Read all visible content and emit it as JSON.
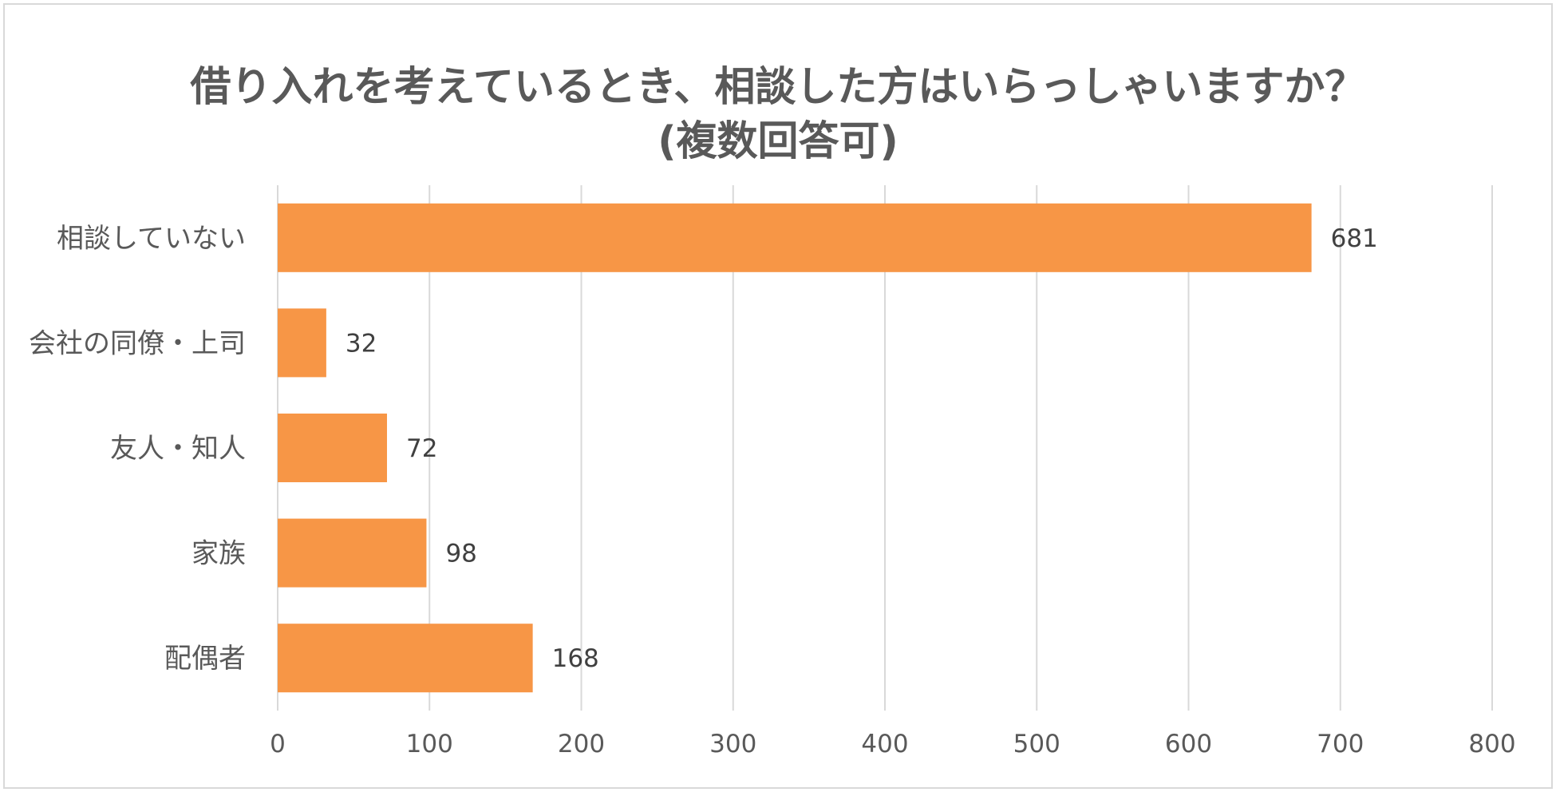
{
  "chart_data": {
    "type": "bar",
    "orientation": "horizontal",
    "title_lines": [
      "借り入れを考えているとき、相談した方はいらっしゃいますか？",
      "(複数回答可)"
    ],
    "categories": [
      "相談していない",
      "会社の同僚・上司",
      "友人・知人",
      "家族",
      "配偶者"
    ],
    "values": [
      681,
      32,
      72,
      98,
      168
    ],
    "value_labels": [
      "681",
      "32",
      "72",
      "98",
      "168"
    ],
    "xlim": [
      0,
      800
    ],
    "x_ticks": [
      0,
      100,
      200,
      300,
      400,
      500,
      600,
      700,
      800
    ],
    "x_tick_labels": [
      "0",
      "100",
      "200",
      "300",
      "400",
      "500",
      "600",
      "700",
      "800"
    ],
    "xlabel": "",
    "ylabel": "",
    "grid": "vertical",
    "legend": "none",
    "bar_color": "#f79646",
    "grid_color": "#d9d9d9",
    "text_color": "#595959"
  }
}
